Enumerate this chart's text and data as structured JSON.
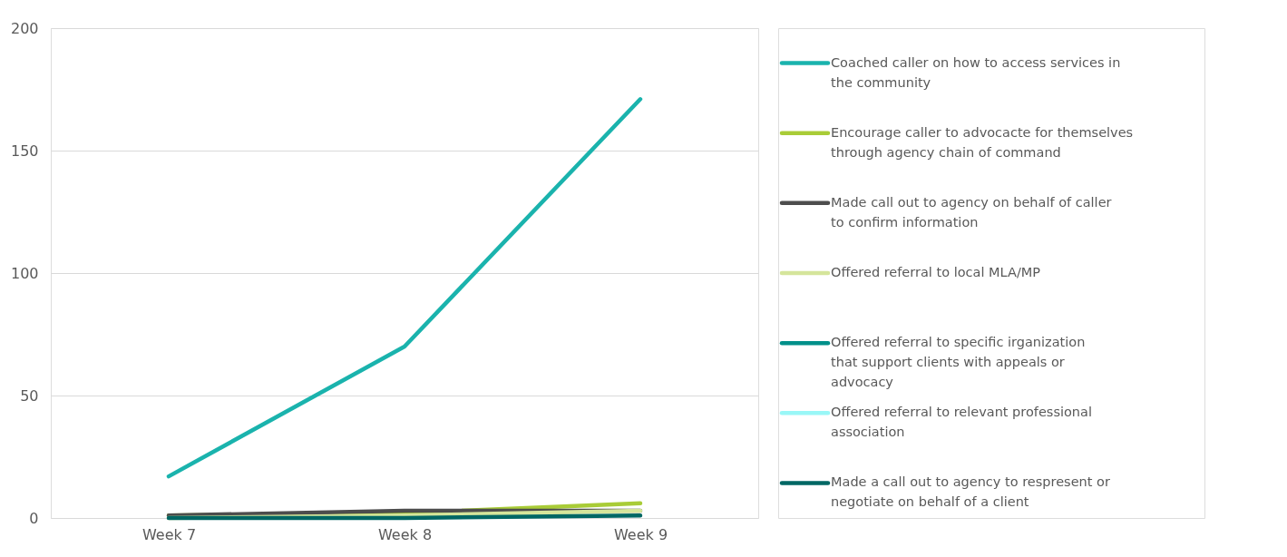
{
  "chart_data": {
    "type": "line",
    "categories": [
      "Week 7",
      "Week 8",
      "Week 9"
    ],
    "series": [
      {
        "name": "Coached caller on how to access services in the community",
        "color": "#1ab3ad",
        "values": [
          17,
          70,
          171
        ]
      },
      {
        "name": "Encourage caller to advocacte for themselves through agency chain of command",
        "color": "#a9cc37",
        "values": [
          1,
          2,
          6
        ]
      },
      {
        "name": "Made call out to agency on behalf of caller to confirm information",
        "color": "#4d4d4d",
        "values": [
          1,
          3,
          3
        ]
      },
      {
        "name": "Offered referral to local MLA/MP",
        "color": "#d5e59b",
        "values": [
          0,
          1,
          3
        ]
      },
      {
        "name": "Offered referral to specific irganization that support clients with appeals or advocacy",
        "color": "#00908a",
        "values": [
          null,
          null,
          null
        ]
      },
      {
        "name": "Offered referral to relevant professional association",
        "color": "#99f7f7",
        "values": [
          null,
          null,
          null
        ]
      },
      {
        "name": "Made a call out to agency to respresent or negotiate on behalf of a client",
        "color": "#006764",
        "values": [
          0,
          0,
          1
        ]
      }
    ],
    "ylim": [
      0,
      200
    ],
    "yticks": [
      0,
      50,
      100,
      150,
      200
    ],
    "grid": "y",
    "legend": "right",
    "marker": "none",
    "line_style": "solid"
  }
}
